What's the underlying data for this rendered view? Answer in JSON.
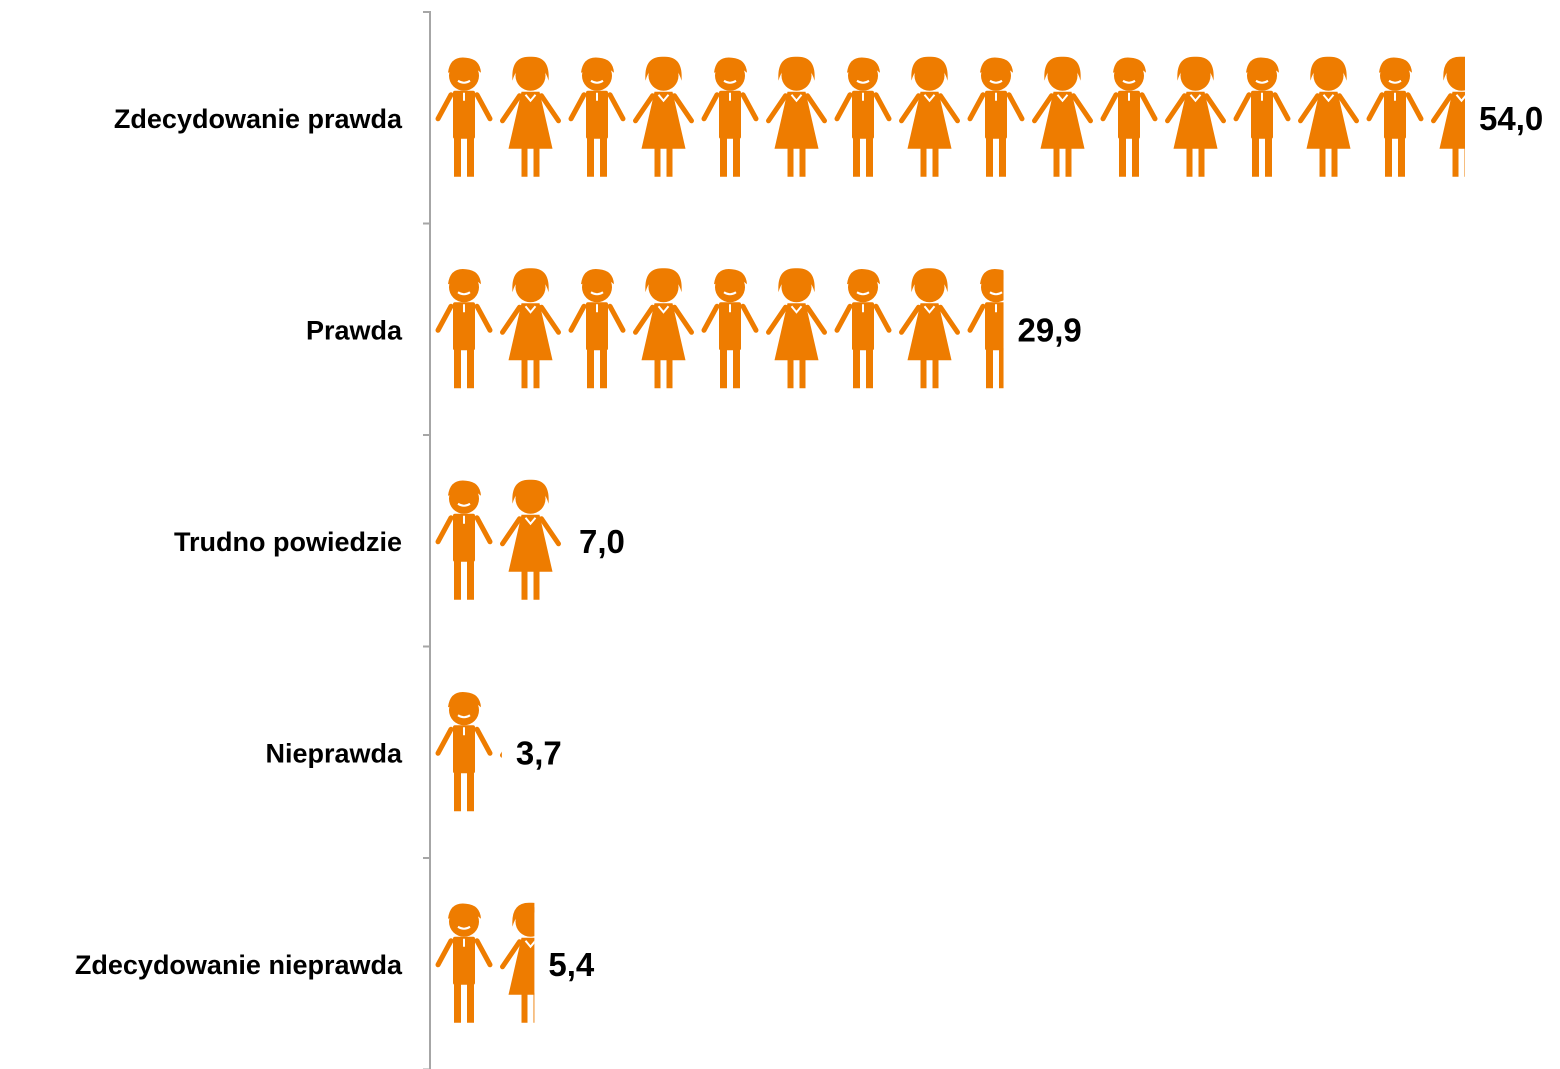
{
  "chart_data": {
    "type": "bar",
    "orientation": "horizontal",
    "style": "pictograph",
    "categories": [
      "Zdecydowanie prawda",
      "Prawda",
      "Trudno powiedzie",
      "Nieprawda",
      "Zdecydowanie nieprawda"
    ],
    "values": [
      54.0,
      29.9,
      7.0,
      3.7,
      5.4
    ],
    "value_labels": [
      "54,0",
      "29,9",
      "7,0",
      "3,7",
      "5,4"
    ],
    "xlim": [
      0,
      54.0
    ],
    "grid": false,
    "legend": "none",
    "colors": {
      "bar": "#EE7C00",
      "text": "#000000",
      "axis": "#A6A6A6"
    }
  }
}
